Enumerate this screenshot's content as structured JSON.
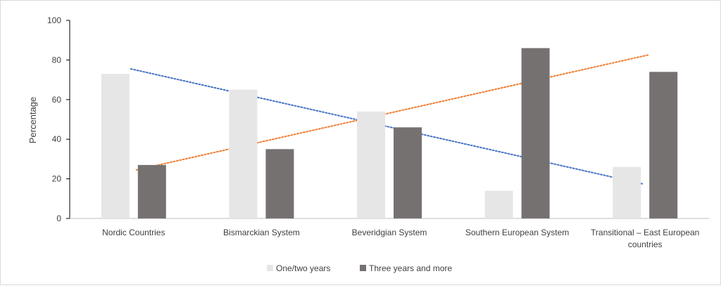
{
  "chart_data": {
    "type": "bar",
    "ylabel": "Percentage",
    "ylim": [
      0,
      100
    ],
    "yticks": [
      0,
      20,
      40,
      60,
      80,
      100
    ],
    "categories": [
      [
        "Nordic Countries"
      ],
      [
        "Bismarckian System"
      ],
      [
        "Beveridgian System"
      ],
      [
        "Southern European System"
      ],
      [
        "Transitional – East European",
        "countries"
      ]
    ],
    "series": [
      {
        "name": "One/two years",
        "values": [
          73,
          65,
          54,
          14,
          26
        ],
        "color": "#e6e6e6"
      },
      {
        "name": "Three years and more",
        "values": [
          27,
          35,
          46,
          86,
          74
        ],
        "color": "#767171"
      }
    ],
    "trendlines": [
      {
        "series": "One/two years",
        "type": "linear",
        "style": "dotted",
        "color": "#4472c4",
        "start": 75.5,
        "end": 17.5
      },
      {
        "series": "Three years and more",
        "type": "linear",
        "style": "dotted",
        "color": "#ed7d31",
        "start": 24.5,
        "end": 82.5
      }
    ],
    "legend": "bottom",
    "grid": false
  }
}
